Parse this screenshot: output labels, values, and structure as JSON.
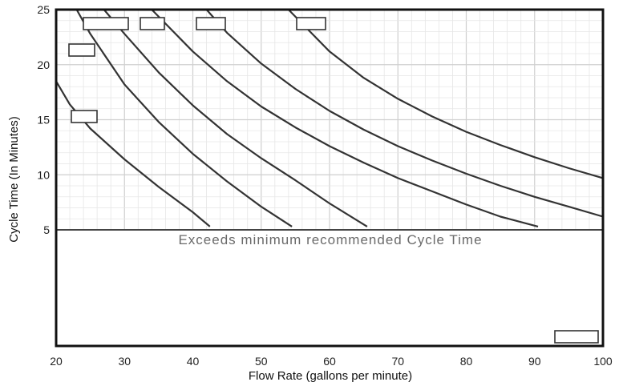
{
  "chart_data": {
    "type": "line",
    "title": "",
    "xlabel": "Flow Rate (gallons per minute)",
    "ylabel": "Cycle Time (In Minutes)",
    "xlim": [
      20,
      100
    ],
    "ylim": [
      0,
      25
    ],
    "x_ticks": [
      "20",
      "30",
      "40",
      "50",
      "60",
      "70",
      "80",
      "90",
      "100"
    ],
    "y_ticks": [
      {
        "value": 5,
        "label": "5"
      },
      {
        "value": 10,
        "label": "10"
      },
      {
        "value": 15,
        "label": "15"
      },
      {
        "value": 20,
        "label": "20"
      },
      {
        "value": 25,
        "label": "25"
      }
    ],
    "grid": true,
    "threshold": {
      "y": 5,
      "label": "Exceeds minimum recommended Cycle Time"
    },
    "corner_label": "",
    "series": [
      {
        "label": "",
        "x": [
          20,
          22,
          25,
          30,
          35,
          40,
          42.5
        ],
        "y": [
          18.5,
          16.4,
          14.2,
          11.4,
          8.9,
          6.6,
          5.3
        ]
      },
      {
        "label": "",
        "x": [
          23,
          25,
          30,
          35,
          40,
          45,
          50,
          54.5
        ],
        "y": [
          25,
          22.8,
          18.2,
          14.8,
          11.9,
          9.4,
          7.1,
          5.3
        ]
      },
      {
        "label": "",
        "x": [
          27,
          30,
          35,
          40,
          45,
          50,
          55,
          60,
          65.5
        ],
        "y": [
          25,
          22.8,
          19.3,
          16.3,
          13.7,
          11.5,
          9.5,
          7.4,
          5.3
        ]
      },
      {
        "label": "",
        "x": [
          34,
          40,
          45,
          50,
          55,
          60,
          65,
          70,
          75,
          80,
          85,
          90.5
        ],
        "y": [
          25,
          21.2,
          18.5,
          16.2,
          14.3,
          12.6,
          11.1,
          9.7,
          8.5,
          7.3,
          6.2,
          5.3
        ]
      },
      {
        "label": "",
        "x": [
          42,
          45,
          50,
          55,
          60,
          65,
          70,
          75,
          80,
          85,
          90,
          95,
          100
        ],
        "y": [
          25,
          22.9,
          20.1,
          17.8,
          15.8,
          14.1,
          12.6,
          11.3,
          10.1,
          9.0,
          8.0,
          7.1,
          6.2
        ]
      },
      {
        "label": "",
        "x": [
          54,
          60,
          65,
          70,
          75,
          80,
          85,
          90,
          95,
          100
        ],
        "y": [
          25,
          21.2,
          18.8,
          16.9,
          15.3,
          13.9,
          12.7,
          11.6,
          10.6,
          9.7
        ]
      }
    ]
  }
}
